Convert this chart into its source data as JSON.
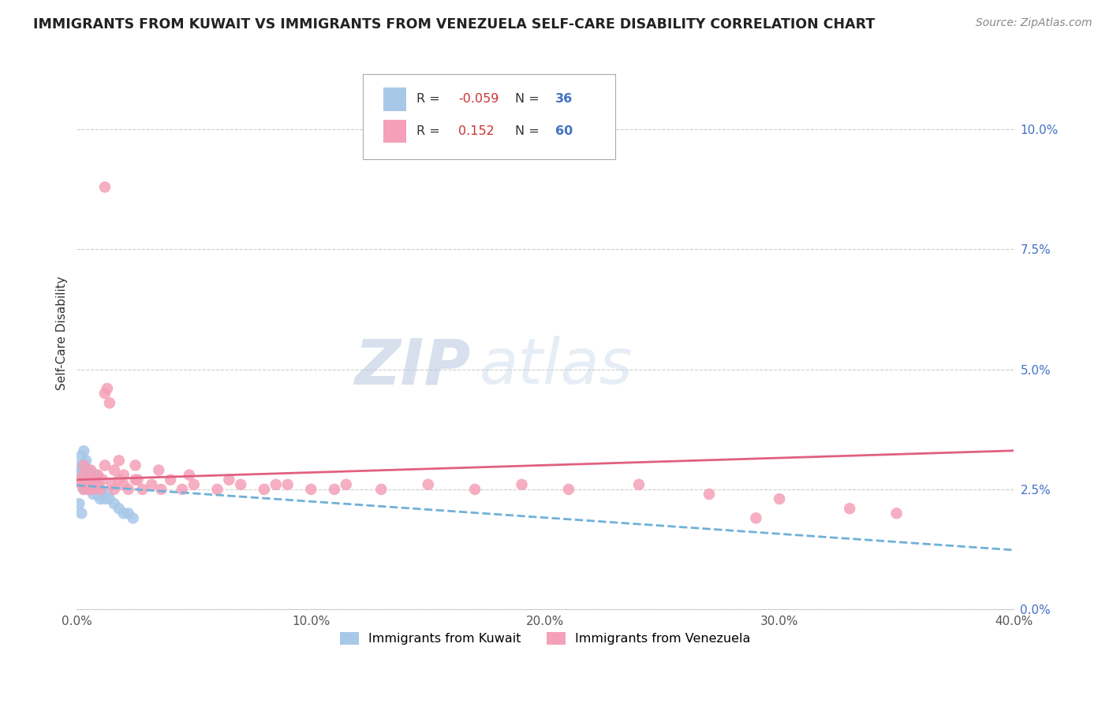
{
  "title": "IMMIGRANTS FROM KUWAIT VS IMMIGRANTS FROM VENEZUELA SELF-CARE DISABILITY CORRELATION CHART",
  "source": "Source: ZipAtlas.com",
  "ylabel": "Self-Care Disability",
  "xlim": [
    0.0,
    0.4
  ],
  "ylim": [
    0.0,
    0.115
  ],
  "yticks": [
    0.0,
    0.025,
    0.05,
    0.075,
    0.1
  ],
  "ytick_labels": [
    "0.0%",
    "2.5%",
    "5.0%",
    "7.5%",
    "10.0%"
  ],
  "xticks": [
    0.0,
    0.1,
    0.2,
    0.3,
    0.4
  ],
  "xtick_labels": [
    "0.0%",
    "10.0%",
    "20.0%",
    "30.0%",
    "40.0%"
  ],
  "kuwait_R": -0.059,
  "kuwait_N": 36,
  "venezuela_R": 0.152,
  "venezuela_N": 60,
  "kuwait_color": "#a8c8e8",
  "venezuela_color": "#f4a0b8",
  "kuwait_line_color": "#70b0d8",
  "venezuela_line_color": "#e06080",
  "watermark_text": "ZIPatlas",
  "legend_kuwait": "Immigrants from Kuwait",
  "legend_venezuela": "Immigrants from Venezuela",
  "kuwait_x": [
    0.001,
    0.001,
    0.002,
    0.002,
    0.002,
    0.003,
    0.003,
    0.003,
    0.003,
    0.004,
    0.004,
    0.004,
    0.005,
    0.005,
    0.005,
    0.006,
    0.006,
    0.007,
    0.007,
    0.008,
    0.008,
    0.009,
    0.009,
    0.01,
    0.01,
    0.011,
    0.012,
    0.013,
    0.014,
    0.016,
    0.018,
    0.02,
    0.022,
    0.024,
    0.001,
    0.002
  ],
  "kuwait_y": [
    0.028,
    0.03,
    0.027,
    0.029,
    0.032,
    0.025,
    0.027,
    0.03,
    0.033,
    0.026,
    0.028,
    0.031,
    0.025,
    0.027,
    0.029,
    0.026,
    0.028,
    0.024,
    0.027,
    0.025,
    0.028,
    0.024,
    0.026,
    0.023,
    0.025,
    0.024,
    0.023,
    0.024,
    0.023,
    0.022,
    0.021,
    0.02,
    0.02,
    0.019,
    0.022,
    0.02
  ],
  "venezuela_x": [
    0.001,
    0.002,
    0.003,
    0.003,
    0.004,
    0.005,
    0.005,
    0.006,
    0.007,
    0.008,
    0.009,
    0.01,
    0.011,
    0.012,
    0.013,
    0.014,
    0.015,
    0.016,
    0.018,
    0.02,
    0.022,
    0.025,
    0.028,
    0.032,
    0.036,
    0.04,
    0.045,
    0.05,
    0.06,
    0.07,
    0.08,
    0.09,
    0.1,
    0.115,
    0.13,
    0.15,
    0.17,
    0.19,
    0.21,
    0.24,
    0.27,
    0.3,
    0.33,
    0.003,
    0.006,
    0.009,
    0.012,
    0.016,
    0.02,
    0.026,
    0.012,
    0.018,
    0.025,
    0.035,
    0.048,
    0.065,
    0.085,
    0.11,
    0.29,
    0.35
  ],
  "venezuela_y": [
    0.027,
    0.026,
    0.025,
    0.028,
    0.026,
    0.025,
    0.027,
    0.026,
    0.025,
    0.027,
    0.026,
    0.025,
    0.027,
    0.045,
    0.046,
    0.043,
    0.026,
    0.025,
    0.027,
    0.026,
    0.025,
    0.027,
    0.025,
    0.026,
    0.025,
    0.027,
    0.025,
    0.026,
    0.025,
    0.026,
    0.025,
    0.026,
    0.025,
    0.026,
    0.025,
    0.026,
    0.025,
    0.026,
    0.025,
    0.026,
    0.024,
    0.023,
    0.021,
    0.03,
    0.029,
    0.028,
    0.03,
    0.029,
    0.028,
    0.027,
    0.088,
    0.031,
    0.03,
    0.029,
    0.028,
    0.027,
    0.026,
    0.025,
    0.019,
    0.02
  ]
}
